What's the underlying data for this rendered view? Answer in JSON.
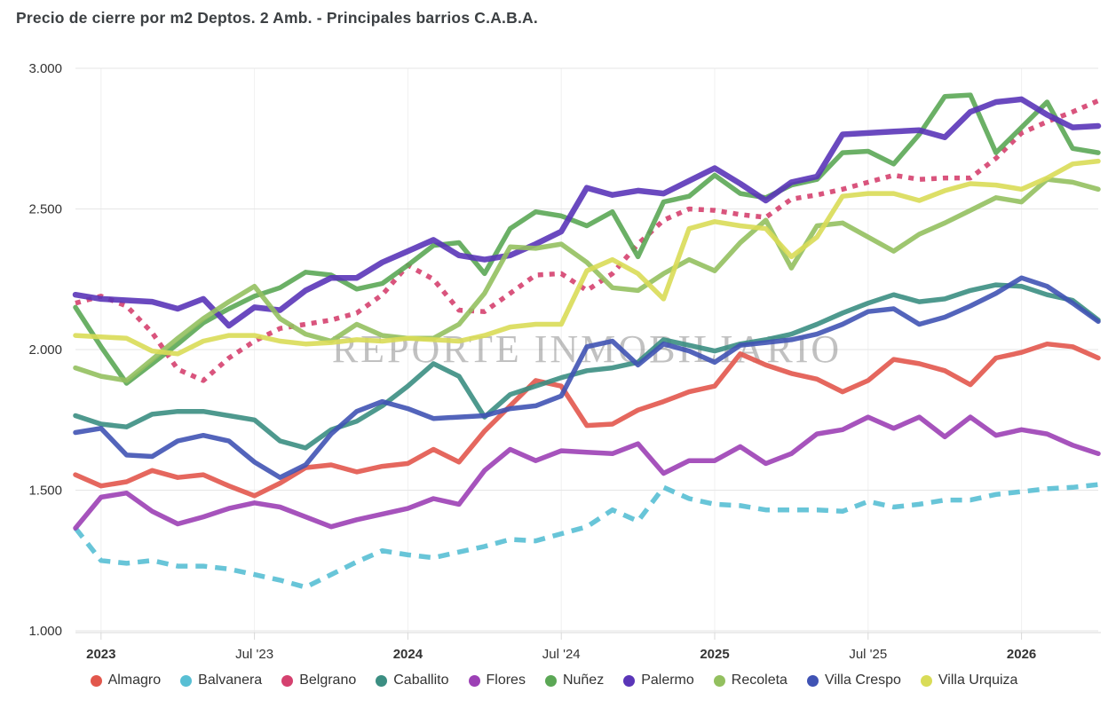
{
  "title": "Precio de cierre por m2 Deptos. 2 Amb. - Principales barrios C.A.B.A.",
  "watermark": "REPORTE INMOBILIARIO",
  "chart_data": {
    "type": "line",
    "x": [
      "2022-12",
      "2023-01",
      "2023-02",
      "2023-03",
      "2023-04",
      "2023-05",
      "2023-06",
      "2023-07",
      "2023-08",
      "2023-09",
      "2023-10",
      "2023-11",
      "2023-12",
      "2024-01",
      "2024-02",
      "2024-03",
      "2024-04",
      "2024-05",
      "2024-06",
      "2024-07",
      "2024-08",
      "2024-09",
      "2024-10",
      "2024-11",
      "2024-12",
      "2025-01",
      "2025-02",
      "2025-03",
      "2025-04",
      "2025-05",
      "2025-06",
      "2025-07",
      "2025-08",
      "2025-09",
      "2025-10",
      "2025-11",
      "2025-12",
      "2026-01",
      "2026-02",
      "2026-03",
      "2026-04"
    ],
    "x_tick_labels": [
      {
        "index": 1,
        "label": "2023",
        "bold": true
      },
      {
        "index": 7,
        "label": "Jul '23",
        "bold": false
      },
      {
        "index": 13,
        "label": "2024",
        "bold": true
      },
      {
        "index": 19,
        "label": "Jul '24",
        "bold": false
      },
      {
        "index": 25,
        "label": "2025",
        "bold": true
      },
      {
        "index": 31,
        "label": "Jul '25",
        "bold": false
      },
      {
        "index": 37,
        "label": "2026",
        "bold": true
      }
    ],
    "ylim": [
      1000,
      3000
    ],
    "y_ticks": [
      {
        "value": 3000,
        "label": "3.000"
      },
      {
        "value": 2500,
        "label": "2.500"
      },
      {
        "value": 2000,
        "label": "2.000"
      },
      {
        "value": 1500,
        "label": "1.500"
      },
      {
        "value": 1000,
        "label": "1.000"
      }
    ],
    "grid": true,
    "legend_position": "bottom",
    "series": [
      {
        "name": "Almagro",
        "color": "#E2574C",
        "dash": "solid",
        "values": [
          1555,
          1515,
          1530,
          1570,
          1545,
          1555,
          1515,
          1480,
          1525,
          1580,
          1590,
          1565,
          1585,
          1595,
          1645,
          1600,
          1710,
          1800,
          1890,
          1870,
          1730,
          1735,
          1785,
          1815,
          1850,
          1870,
          1985,
          1945,
          1915,
          1895,
          1850,
          1890,
          1965,
          1950,
          1925,
          1875,
          1970,
          1990,
          2020,
          2010,
          1970
        ]
      },
      {
        "name": "Balvanera",
        "color": "#58BFD4",
        "dash": "dashed",
        "values": [
          1365,
          1250,
          1240,
          1250,
          1230,
          1230,
          1220,
          1200,
          1180,
          1155,
          1200,
          1245,
          1285,
          1270,
          1260,
          1280,
          1300,
          1325,
          1320,
          1345,
          1370,
          1430,
          1390,
          1510,
          1470,
          1450,
          1445,
          1430,
          1430,
          1430,
          1425,
          1460,
          1440,
          1450,
          1465,
          1465,
          1485,
          1495,
          1505,
          1510,
          1520
        ]
      },
      {
        "name": "Belgrano",
        "color": "#D5416F",
        "dash": "dotted",
        "values": [
          2165,
          2190,
          2155,
          2060,
          1930,
          1890,
          1970,
          2030,
          2075,
          2090,
          2105,
          2130,
          2195,
          2300,
          2250,
          2140,
          2135,
          2200,
          2265,
          2270,
          2210,
          2270,
          2375,
          2460,
          2500,
          2495,
          2480,
          2470,
          2535,
          2550,
          2570,
          2595,
          2620,
          2605,
          2610,
          2610,
          2680,
          2770,
          2810,
          2845,
          2885
        ]
      },
      {
        "name": "Caballito",
        "color": "#3B8E82",
        "dash": "solid",
        "values": [
          1765,
          1735,
          1725,
          1770,
          1780,
          1780,
          1765,
          1750,
          1675,
          1650,
          1715,
          1745,
          1800,
          1870,
          1950,
          1905,
          1760,
          1840,
          1870,
          1900,
          1925,
          1935,
          1955,
          2035,
          2015,
          1995,
          2020,
          2035,
          2055,
          2090,
          2130,
          2165,
          2195,
          2170,
          2180,
          2210,
          2230,
          2225,
          2195,
          2175,
          2105
        ]
      },
      {
        "name": "Flores",
        "color": "#9C40B5",
        "dash": "solid",
        "values": [
          1365,
          1475,
          1490,
          1425,
          1380,
          1405,
          1435,
          1455,
          1440,
          1405,
          1370,
          1395,
          1415,
          1435,
          1470,
          1450,
          1570,
          1645,
          1605,
          1640,
          1635,
          1630,
          1665,
          1560,
          1605,
          1605,
          1655,
          1595,
          1630,
          1700,
          1715,
          1760,
          1720,
          1760,
          1690,
          1760,
          1695,
          1715,
          1700,
          1660,
          1630
        ]
      },
      {
        "name": "Nuñez",
        "color": "#5BA755",
        "dash": "solid",
        "values": [
          2150,
          2010,
          1880,
          1950,
          2020,
          2095,
          2145,
          2190,
          2220,
          2275,
          2265,
          2215,
          2235,
          2300,
          2370,
          2380,
          2270,
          2430,
          2490,
          2475,
          2440,
          2490,
          2330,
          2525,
          2545,
          2620,
          2555,
          2540,
          2585,
          2605,
          2700,
          2705,
          2660,
          2765,
          2900,
          2905,
          2700,
          2790,
          2880,
          2715,
          2700
        ]
      },
      {
        "name": "Palermo",
        "color": "#5A35B8",
        "dash": "solid",
        "values": [
          2195,
          2180,
          2175,
          2170,
          2145,
          2180,
          2085,
          2150,
          2140,
          2210,
          2255,
          2255,
          2310,
          2350,
          2390,
          2335,
          2320,
          2335,
          2375,
          2420,
          2575,
          2550,
          2565,
          2555,
          2600,
          2645,
          2590,
          2530,
          2595,
          2615,
          2765,
          2770,
          2775,
          2780,
          2755,
          2845,
          2880,
          2890,
          2835,
          2790,
          2795
        ]
      },
      {
        "name": "Recoleta",
        "color": "#93C05F",
        "dash": "solid",
        "values": [
          1935,
          1905,
          1890,
          1965,
          2040,
          2110,
          2170,
          2225,
          2110,
          2055,
          2030,
          2090,
          2050,
          2040,
          2040,
          2090,
          2200,
          2365,
          2360,
          2375,
          2310,
          2220,
          2210,
          2270,
          2320,
          2280,
          2380,
          2460,
          2290,
          2440,
          2450,
          2400,
          2350,
          2410,
          2450,
          2495,
          2540,
          2525,
          2605,
          2595,
          2570
        ]
      },
      {
        "name": "Villa Crespo",
        "color": "#4053B4",
        "dash": "solid",
        "values": [
          1705,
          1720,
          1625,
          1620,
          1675,
          1695,
          1675,
          1600,
          1545,
          1590,
          1700,
          1780,
          1815,
          1790,
          1755,
          1760,
          1765,
          1790,
          1800,
          1835,
          2010,
          2030,
          1945,
          2020,
          1995,
          1955,
          2015,
          2025,
          2035,
          2055,
          2090,
          2135,
          2145,
          2090,
          2115,
          2155,
          2200,
          2255,
          2225,
          2165,
          2100
        ]
      },
      {
        "name": "Villa Urquiza",
        "color": "#D9DC57",
        "dash": "solid",
        "values": [
          2050,
          2045,
          2040,
          1995,
          1985,
          2030,
          2050,
          2050,
          2030,
          2020,
          2025,
          2035,
          2030,
          2040,
          2035,
          2030,
          2050,
          2080,
          2090,
          2090,
          2280,
          2320,
          2270,
          2180,
          2430,
          2455,
          2440,
          2430,
          2330,
          2400,
          2545,
          2555,
          2555,
          2530,
          2565,
          2590,
          2585,
          2570,
          2610,
          2660,
          2670
        ]
      }
    ]
  }
}
